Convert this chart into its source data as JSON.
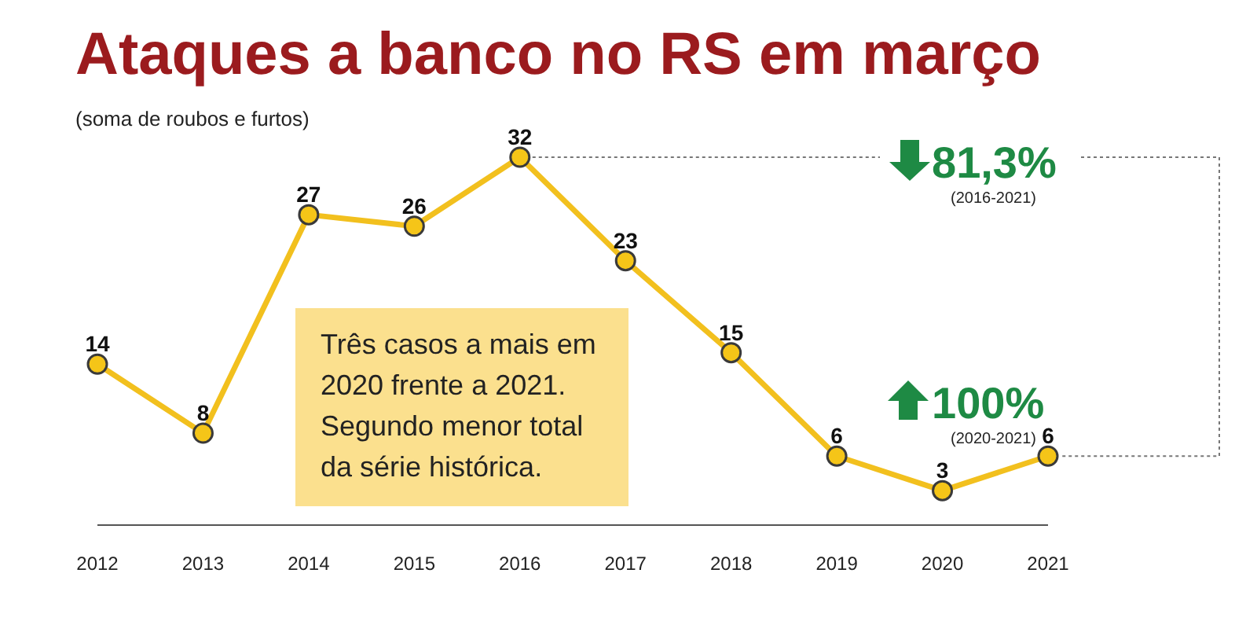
{
  "chart_data": {
    "type": "line",
    "title": "Ataques a banco no RS em março",
    "subtitle": "(soma de roubos e furtos)",
    "categories": [
      "2012",
      "2013",
      "2014",
      "2015",
      "2016",
      "2017",
      "2018",
      "2019",
      "2020",
      "2021"
    ],
    "series": [
      {
        "color": "#f2c01e",
        "values": [
          14,
          8,
          27,
          26,
          32,
          23,
          15,
          6,
          3,
          6
        ]
      }
    ],
    "data_labels": true,
    "marker": "circle",
    "grid": false,
    "legend": false,
    "annotations": [
      "Três casos a mais em 2020 frente a 2021. Segundo menor total da série histórica.",
      "81,3%",
      "(2016-2021)",
      "100%",
      "(2020-2021)"
    ]
  }
}
